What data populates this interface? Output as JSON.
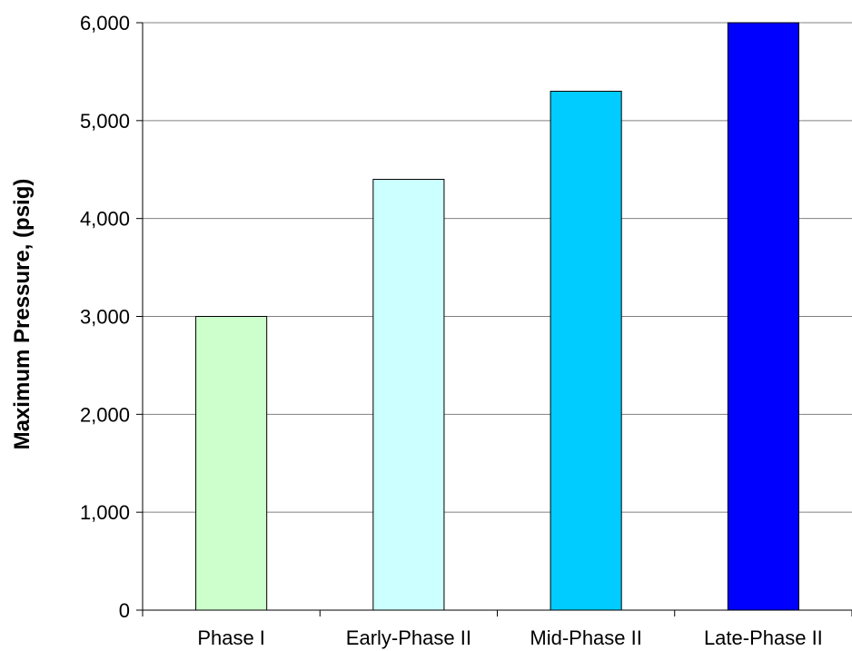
{
  "chart_data": {
    "type": "bar",
    "title": "",
    "xlabel": "",
    "ylabel": "Maximum Pressure, (psig)",
    "categories": [
      "Phase I",
      "Early-Phase II",
      "Mid-Phase II",
      "Late-Phase II"
    ],
    "values": [
      3000,
      4400,
      5300,
      6000
    ],
    "bar_colors": [
      "#CCFFCC",
      "#CCFFFF",
      "#00CCFF",
      "#0000FF"
    ],
    "ylim": [
      0,
      6000
    ],
    "yticks": [
      0,
      1000,
      2000,
      3000,
      4000,
      5000,
      6000
    ],
    "ytick_labels": [
      "0",
      "1,000",
      "2,000",
      "3,000",
      "4,000",
      "5,000",
      "6,000"
    ],
    "grid": "horizontal",
    "legend": "none"
  }
}
